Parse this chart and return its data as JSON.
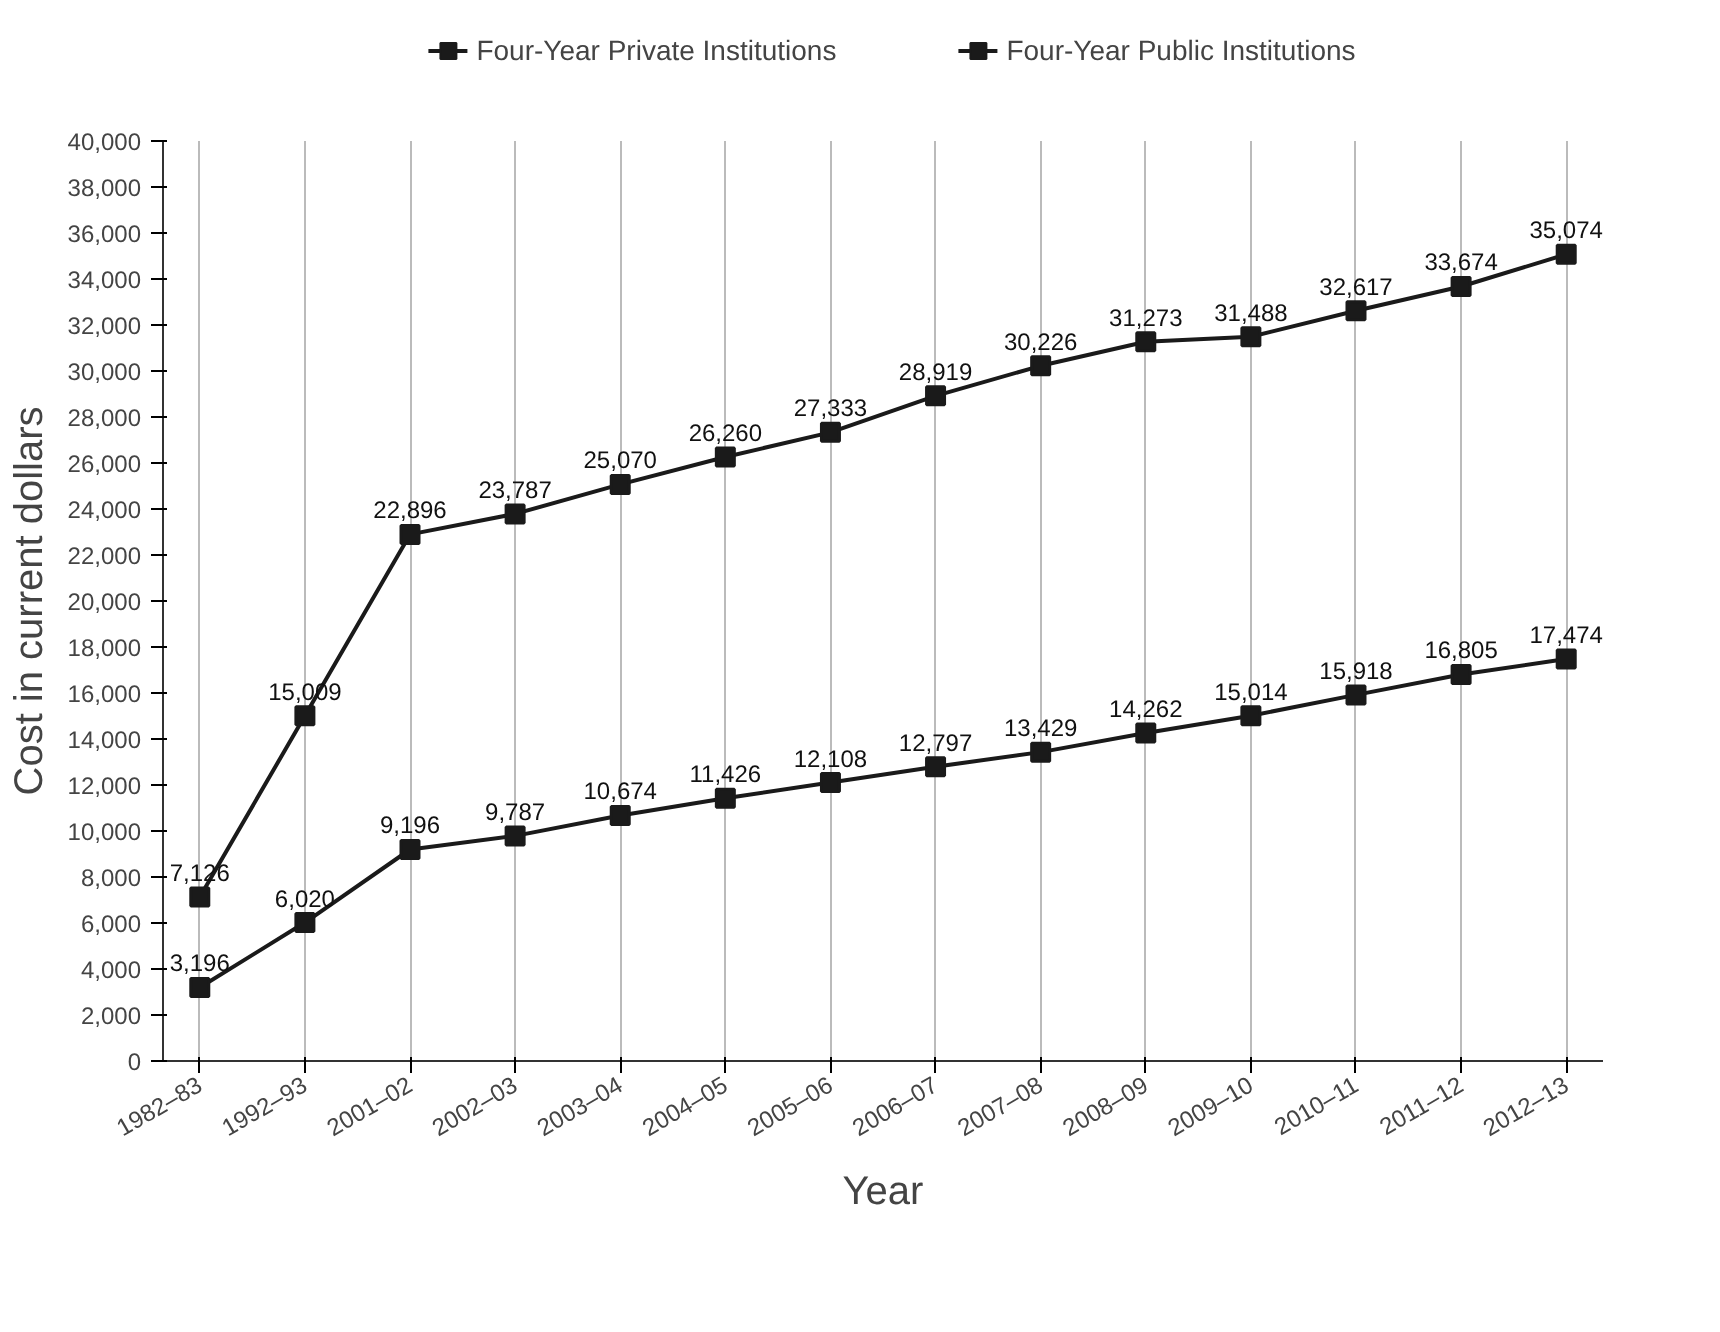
{
  "chart_data": {
    "type": "line",
    "xlabel": "Year",
    "ylabel": "Cost in current dollars",
    "categories": [
      "1982–83",
      "1992–93",
      "2001–02",
      "2002–03",
      "2003–04",
      "2004–05",
      "2005–06",
      "2006–07",
      "2007–08",
      "2008–09",
      "2009–10",
      "2010–11",
      "2011–12",
      "2012–13"
    ],
    "series": [
      {
        "name": "Four-Year Private Institutions",
        "color": "#1a1a1a",
        "marker": "square",
        "values": [
          7126,
          15009,
          22896,
          23787,
          25070,
          26260,
          27333,
          28919,
          30226,
          31273,
          31488,
          32617,
          33674,
          35074
        ],
        "value_labels": [
          "7,126",
          "15,009",
          "22,896",
          "23,787",
          "25,070",
          "26,260",
          "27,333",
          "28,919",
          "30,226",
          "31,273",
          "31,488",
          "32,617",
          "33,674",
          "35,074"
        ]
      },
      {
        "name": "Four-Year Public Institutions",
        "color": "#1a1a1a",
        "marker": "square",
        "values": [
          3196,
          6020,
          9196,
          9787,
          10674,
          11426,
          12108,
          12797,
          13429,
          14262,
          15014,
          15918,
          16805,
          17474
        ],
        "value_labels": [
          "3,196",
          "6,020",
          "9,196",
          "9,787",
          "10,674",
          "11,426",
          "12,108",
          "12,797",
          "13,429",
          "14,262",
          "15,014",
          "15,918",
          "16,805",
          "17,474"
        ]
      }
    ],
    "ylim": [
      0,
      40000
    ],
    "yticks": [
      {
        "value": 0,
        "label": "0"
      },
      {
        "value": 2000,
        "label": "2,000"
      },
      {
        "value": 4000,
        "label": "4,000"
      },
      {
        "value": 6000,
        "label": "6,000"
      },
      {
        "value": 8000,
        "label": "8,000"
      },
      {
        "value": 10000,
        "label": "10,000"
      },
      {
        "value": 12000,
        "label": "12,000"
      },
      {
        "value": 14000,
        "label": "14,000"
      },
      {
        "value": 16000,
        "label": "16,000"
      },
      {
        "value": 18000,
        "label": "18,000"
      },
      {
        "value": 20000,
        "label": "20,000"
      },
      {
        "value": 22000,
        "label": "22,000"
      },
      {
        "value": 24000,
        "label": "24,000"
      },
      {
        "value": 26000,
        "label": "26,000"
      },
      {
        "value": 28000,
        "label": "28,000"
      },
      {
        "value": 30000,
        "label": "30,000"
      },
      {
        "value": 32000,
        "label": "32,000"
      },
      {
        "value": 34000,
        "label": "34,000"
      },
      {
        "value": 36000,
        "label": "36,000"
      },
      {
        "value": 38000,
        "label": "38,000"
      },
      {
        "value": 40000,
        "label": "40,000"
      }
    ],
    "grid": "x",
    "legend": "top",
    "line_style": "solid"
  }
}
